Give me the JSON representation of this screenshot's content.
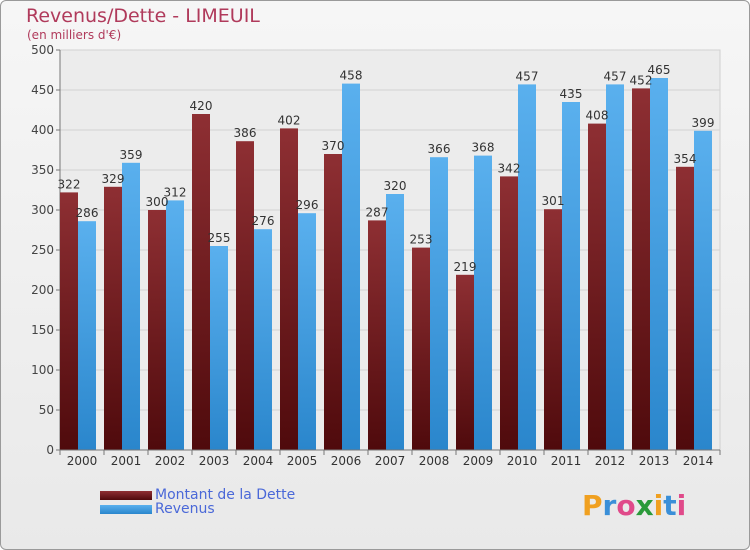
{
  "header": {
    "title": "Revenus/Dette - LIMEUIL",
    "subtitle": "(en milliers d'€)"
  },
  "colors": {
    "dette": "#7a1f24",
    "revenus": "#3b9be0",
    "title": "#b03a5b",
    "legend_text": "#4a68d8"
  },
  "chart_data": {
    "type": "bar",
    "title": "Revenus/Dette - LIMEUIL",
    "subtitle": "(en milliers d'€)",
    "categories": [
      "2000",
      "2001",
      "2002",
      "2003",
      "2004",
      "2005",
      "2006",
      "2007",
      "2008",
      "2009",
      "2010",
      "2011",
      "2012",
      "2013",
      "2014"
    ],
    "series": [
      {
        "name": "Montant de la Dette",
        "values": [
          322,
          329,
          300,
          420,
          386,
          402,
          370,
          287,
          253,
          219,
          342,
          301,
          408,
          452,
          354
        ]
      },
      {
        "name": "Revenus",
        "values": [
          286,
          359,
          312,
          255,
          276,
          296,
          458,
          320,
          366,
          368,
          457,
          435,
          457,
          465,
          399
        ]
      }
    ],
    "ylim": [
      0,
      500
    ],
    "yticks": [
      0,
      50,
      100,
      150,
      200,
      250,
      300,
      350,
      400,
      450,
      500
    ],
    "grid": true,
    "legend_position": "bottom-left"
  },
  "legend": {
    "items": [
      {
        "label": "Montant de la Dette"
      },
      {
        "label": "Revenus"
      }
    ]
  },
  "logo": {
    "text": "Proxiti",
    "letters": [
      "P",
      "r",
      "o",
      "x",
      "i",
      "t",
      "i"
    ],
    "letter_colors": [
      "#f0a020",
      "#3a8fd8",
      "#e04a8a",
      "#2a9a3a",
      "#f0a020",
      "#3a8fd8",
      "#e04a8a"
    ]
  }
}
